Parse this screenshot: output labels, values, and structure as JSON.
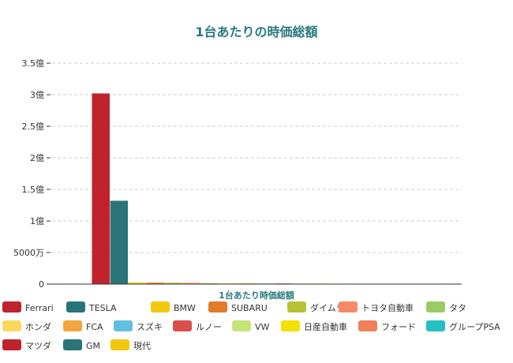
{
  "chart_data": {
    "type": "bar",
    "title": "1台あたりの時価総額",
    "xlabel": "1台あたり時価総額",
    "ylabel": "",
    "ylim": [
      0,
      350000000
    ],
    "y_ticks": [
      {
        "value": 0,
        "label": "0"
      },
      {
        "value": 50000000,
        "label": "5000万"
      },
      {
        "value": 100000000,
        "label": "1億"
      },
      {
        "value": 150000000,
        "label": "1.5億"
      },
      {
        "value": 200000000,
        "label": "2億"
      },
      {
        "value": 250000000,
        "label": "2.5億"
      },
      {
        "value": 300000000,
        "label": "3億"
      },
      {
        "value": 350000000,
        "label": "3.5億"
      }
    ],
    "grid": true,
    "legend_position": "bottom",
    "series": [
      {
        "name": "Ferrari",
        "value": 302000000,
        "color": "#c0232c"
      },
      {
        "name": "TESLA",
        "value": 132000000,
        "color": "#2a7479"
      },
      {
        "name": "BMW",
        "value": 2500000,
        "color": "#f2c80f"
      },
      {
        "name": "SUBARU",
        "value": 2300000,
        "color": "#e07b28"
      },
      {
        "name": "ダイムラー",
        "value": 2200000,
        "color": "#b5c334"
      },
      {
        "name": "トヨタ自動車",
        "value": 2000000,
        "color": "#f98866"
      },
      {
        "name": "タタ",
        "value": 1500000,
        "color": "#9bca63"
      },
      {
        "name": "ホンダ",
        "value": 1300000,
        "color": "#fad860"
      },
      {
        "name": "FCA",
        "value": 1200000,
        "color": "#f4a53e"
      },
      {
        "name": "スズキ",
        "value": 1000000,
        "color": "#60c0dd"
      },
      {
        "name": "ルノー",
        "value": 1000000,
        "color": "#d7504b"
      },
      {
        "name": "VW",
        "value": 900000,
        "color": "#c6e579"
      },
      {
        "name": "日産自動車",
        "value": 800000,
        "color": "#f4e001"
      },
      {
        "name": "フォード",
        "value": 700000,
        "color": "#f0805a"
      },
      {
        "name": "グループPSA",
        "value": 600000,
        "color": "#26c0c0"
      },
      {
        "name": "マツダ",
        "value": 600000,
        "color": "#c0232c"
      },
      {
        "name": "GM",
        "value": 500000,
        "color": "#2a7479"
      },
      {
        "name": "現代",
        "value": 400000,
        "color": "#f2c80f"
      }
    ]
  }
}
